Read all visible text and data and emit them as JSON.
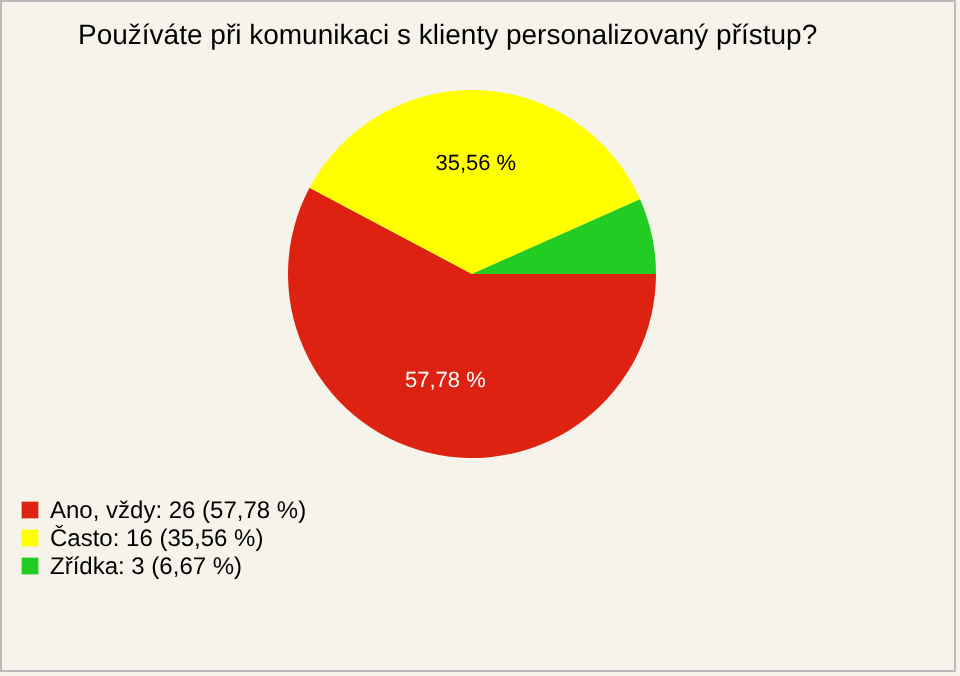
{
  "chart_data": {
    "type": "pie",
    "title": "Používáte při komunikaci s klienty personalizovaný přístup?",
    "categories": [
      "Ano, vždy: 26 (57,78 %)",
      "Často: 16 (35,56 %)",
      "Zřídka: 3 (6,67 %)"
    ],
    "values": [
      57.78,
      35.56,
      6.67
    ],
    "colors": [
      "#dd2211",
      "#ffff00",
      "#22cc22"
    ],
    "value_labels": [
      "57,78 %",
      "35,56 %",
      null
    ],
    "legend": "bottom left"
  }
}
